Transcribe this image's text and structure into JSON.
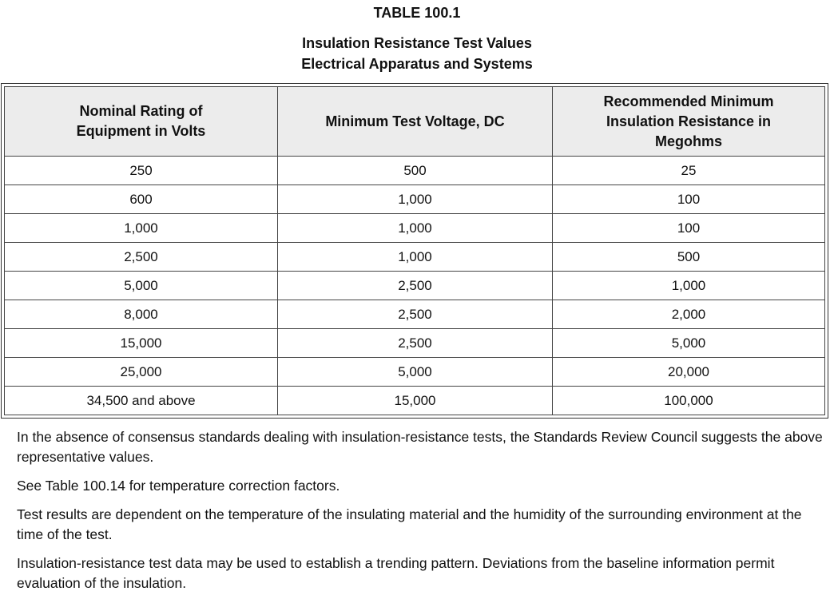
{
  "header": {
    "table_number": "TABLE 100.1",
    "title_line_1": "Insulation Resistance Test Values",
    "title_line_2": "Electrical Apparatus and Systems"
  },
  "table": {
    "columns": [
      "Nominal Rating of Equipment in Volts",
      "Minimum Test Voltage, DC",
      "Recommended Minimum Insulation Resistance in Megohms"
    ],
    "rows": [
      [
        "250",
        "500",
        "25"
      ],
      [
        "600",
        "1,000",
        "100"
      ],
      [
        "1,000",
        "1,000",
        "100"
      ],
      [
        "2,500",
        "1,000",
        "500"
      ],
      [
        "5,000",
        "2,500",
        "1,000"
      ],
      [
        "8,000",
        "2,500",
        "2,000"
      ],
      [
        "15,000",
        "2,500",
        "5,000"
      ],
      [
        "25,000",
        "5,000",
        "20,000"
      ],
      [
        "34,500 and above",
        "15,000",
        "100,000"
      ]
    ]
  },
  "notes": [
    "In the absence of consensus standards dealing with insulation-resistance tests, the Standards Review Council suggests the above representative values.",
    "See Table 100.14 for temperature correction factors.",
    "Test results are dependent on the temperature of the insulating material and the humidity of the surrounding environment at the time of the test.",
    "Insulation-resistance test data may be used to establish a trending pattern. Deviations from the baseline information permit evaluation of the insulation."
  ]
}
